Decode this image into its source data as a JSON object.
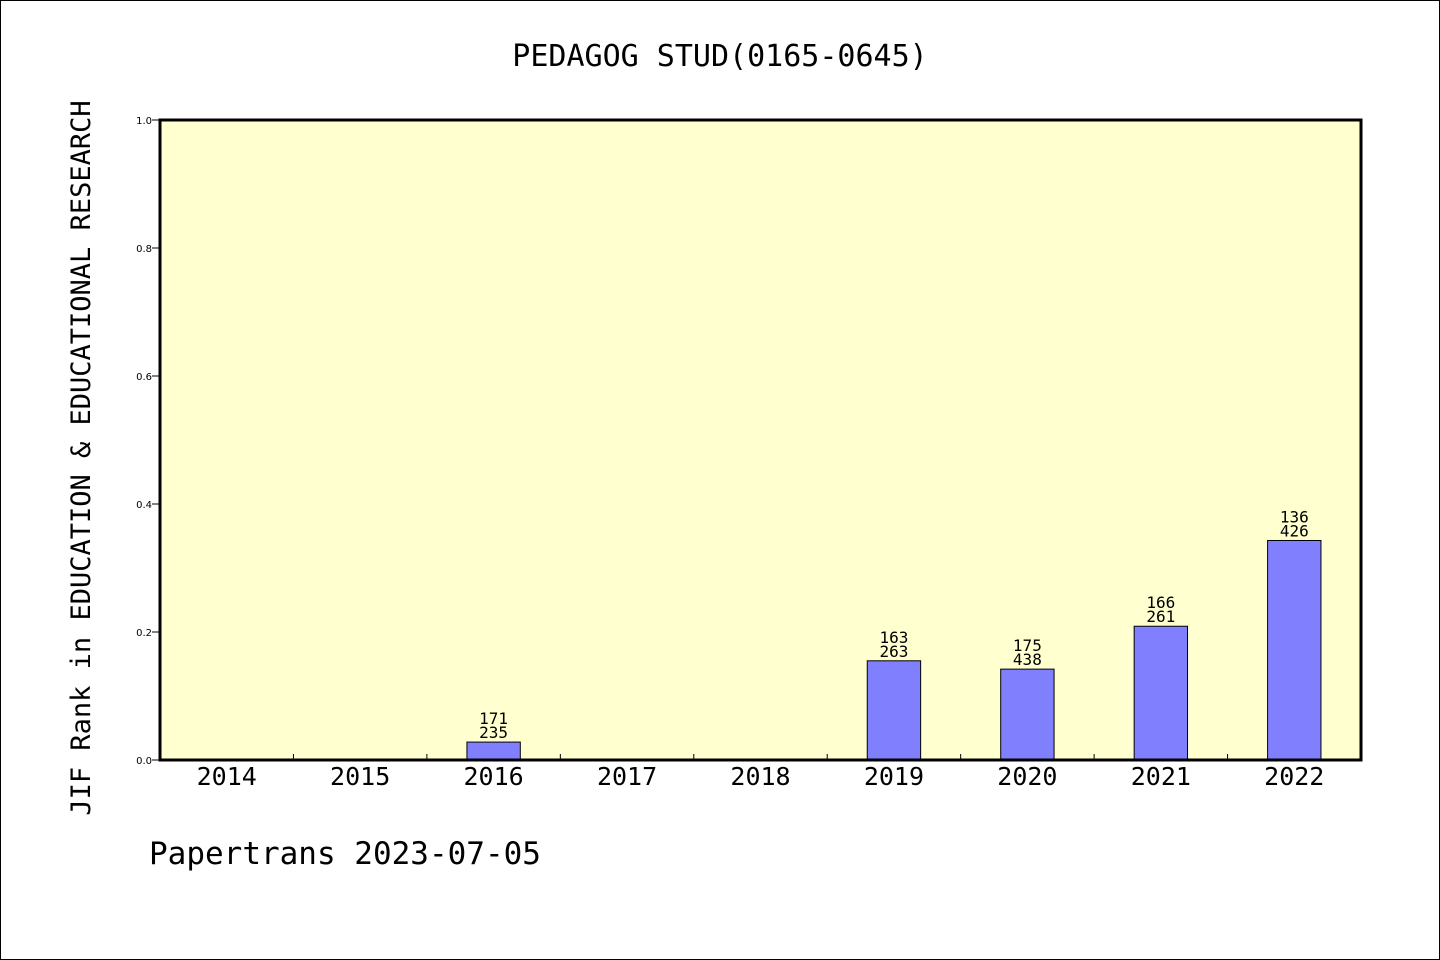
{
  "chart_data": {
    "type": "bar",
    "title": "PEDAGOG STUD(0165-0645)",
    "xlabel": "",
    "ylabel": "JIF Rank in EDUCATION & EDUCATIONAL RESEARCH",
    "categories": [
      "2014",
      "2015",
      "2016",
      "2017",
      "2018",
      "2019",
      "2020",
      "2021",
      "2022"
    ],
    "values": [
      null,
      null,
      0.028,
      null,
      null,
      0.155,
      0.142,
      0.209,
      0.343
    ],
    "labels": [
      null,
      null,
      {
        "rank": "171",
        "total": "235"
      },
      null,
      null,
      {
        "rank": "163",
        "total": "263"
      },
      {
        "rank": "175",
        "total": "438"
      },
      {
        "rank": "166",
        "total": "261"
      },
      {
        "rank": "136",
        "total": "426"
      }
    ],
    "ylim": [
      0,
      1.0
    ],
    "yticks": [
      "0.0",
      "0.2",
      "0.4",
      "0.6",
      "0.8",
      "1.0"
    ],
    "grid": false,
    "colors": {
      "plot_background": "#ffffd0",
      "bar_fill": "#8080ff",
      "bar_stroke": "#000000"
    }
  },
  "footer": "Papertrans 2023-07-05"
}
